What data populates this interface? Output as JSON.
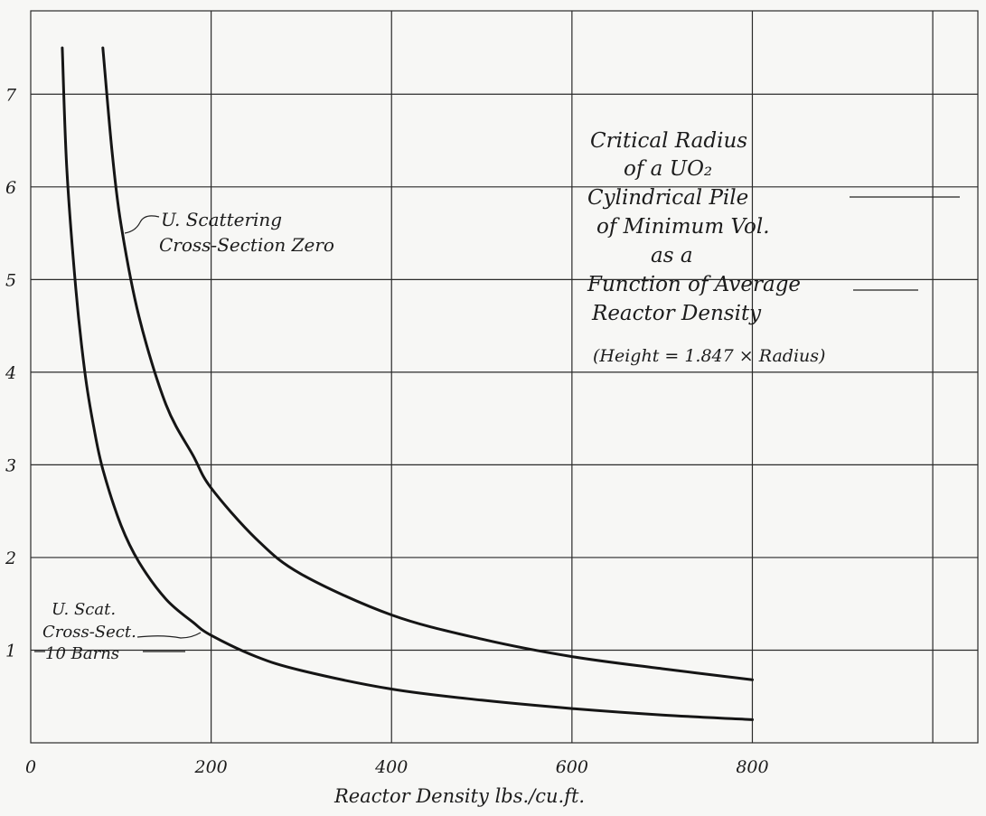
{
  "chart_data": {
    "type": "line",
    "title_lines": [
      "Critical Radius",
      "of a UO₂",
      "Cylindrical Pile",
      "of Minimum Vol.",
      "as a",
      "Function of Average",
      "Reactor Density"
    ],
    "note": "(Height = 1.847 × Radius)",
    "xlabel": "Reactor Density  lbs./cu.ft.",
    "ylabel": "",
    "xlim": [
      0,
      1050
    ],
    "ylim": [
      0,
      7.9
    ],
    "x_ticks": [
      "0",
      "200",
      "400",
      "600",
      "800"
    ],
    "y_ticks": [
      "1",
      "2",
      "3",
      "4",
      "5",
      "6",
      "7"
    ],
    "x_grid": [
      200,
      400,
      600,
      800,
      1000
    ],
    "y_grid": [
      1,
      2,
      3,
      4,
      5,
      6,
      7
    ],
    "grid": true,
    "series": [
      {
        "name": "U. Scattering Cross-Section Zero",
        "label_lines": [
          "U. Scattering",
          "Cross-Section Zero"
        ],
        "x": [
          80,
          90,
          100,
          120,
          150,
          180,
          200,
          250,
          300,
          400,
          500,
          600,
          700,
          800
        ],
        "y": [
          7.5,
          6.4,
          5.6,
          4.6,
          3.65,
          3.1,
          2.75,
          2.2,
          1.82,
          1.38,
          1.12,
          0.93,
          0.8,
          0.68
        ]
      },
      {
        "name": "U. Scat. Cross-Sect. 10 Barns",
        "label_lines": [
          "U. Scat.",
          "Cross-Sect.",
          "10 Barns"
        ],
        "x": [
          35,
          40,
          50,
          60,
          70,
          80,
          100,
          120,
          150,
          180,
          200,
          250,
          300,
          400,
          500,
          600,
          700,
          800
        ],
        "y": [
          7.5,
          6.2,
          4.9,
          4.0,
          3.4,
          2.95,
          2.35,
          1.95,
          1.55,
          1.3,
          1.16,
          0.93,
          0.78,
          0.58,
          0.46,
          0.37,
          0.3,
          0.25
        ]
      }
    ]
  }
}
